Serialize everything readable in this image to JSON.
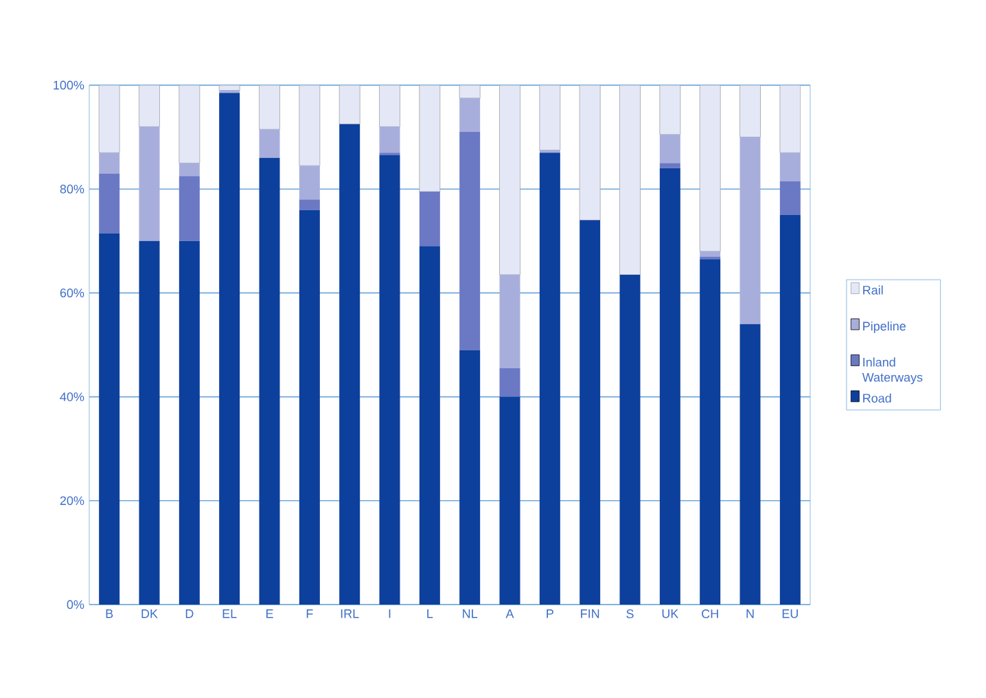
{
  "chart_data": {
    "type": "bar",
    "stacked": true,
    "categories": [
      "B",
      "DK",
      "D",
      "EL",
      "E",
      "F",
      "IRL",
      "I",
      "L",
      "NL",
      "A",
      "P",
      "FIN",
      "S",
      "UK",
      "CH",
      "N",
      "EU"
    ],
    "series": [
      {
        "name": "Road",
        "color": "#0d3f9c",
        "values": [
          71.5,
          70,
          70,
          98.5,
          86,
          76,
          92.5,
          86.5,
          69,
          49,
          40,
          87,
          74,
          63.5,
          84,
          66.5,
          54,
          75
        ]
      },
      {
        "name": "Inland Waterways",
        "color": "#6b79c4",
        "values": [
          11.5,
          0,
          12.5,
          0,
          0,
          2,
          0,
          0.5,
          10.5,
          42,
          5.5,
          0,
          0,
          0,
          1,
          0.5,
          0,
          6.5
        ]
      },
      {
        "name": "Pipeline",
        "color": "#a8aedc",
        "values": [
          4,
          22,
          2.5,
          0.5,
          5.5,
          6.5,
          0,
          5,
          0,
          6.5,
          18,
          0.5,
          0,
          0,
          5.5,
          1,
          36,
          5.5
        ]
      },
      {
        "name": "Rail",
        "color": "#e4e7f5",
        "values": [
          13,
          8,
          15,
          1,
          8.5,
          15.5,
          7.5,
          8,
          20.5,
          2.5,
          36.5,
          12.5,
          26,
          36.5,
          9.5,
          32,
          10,
          13
        ]
      }
    ],
    "ylim": [
      0,
      100
    ],
    "yticks": [
      {
        "value": 0,
        "label": "0%"
      },
      {
        "value": 20,
        "label": "20%"
      },
      {
        "value": 40,
        "label": "40%"
      },
      {
        "value": 60,
        "label": "60%"
      },
      {
        "value": 80,
        "label": "80%"
      },
      {
        "value": 100,
        "label": "100%"
      }
    ],
    "grid": "y",
    "legend": "right"
  }
}
